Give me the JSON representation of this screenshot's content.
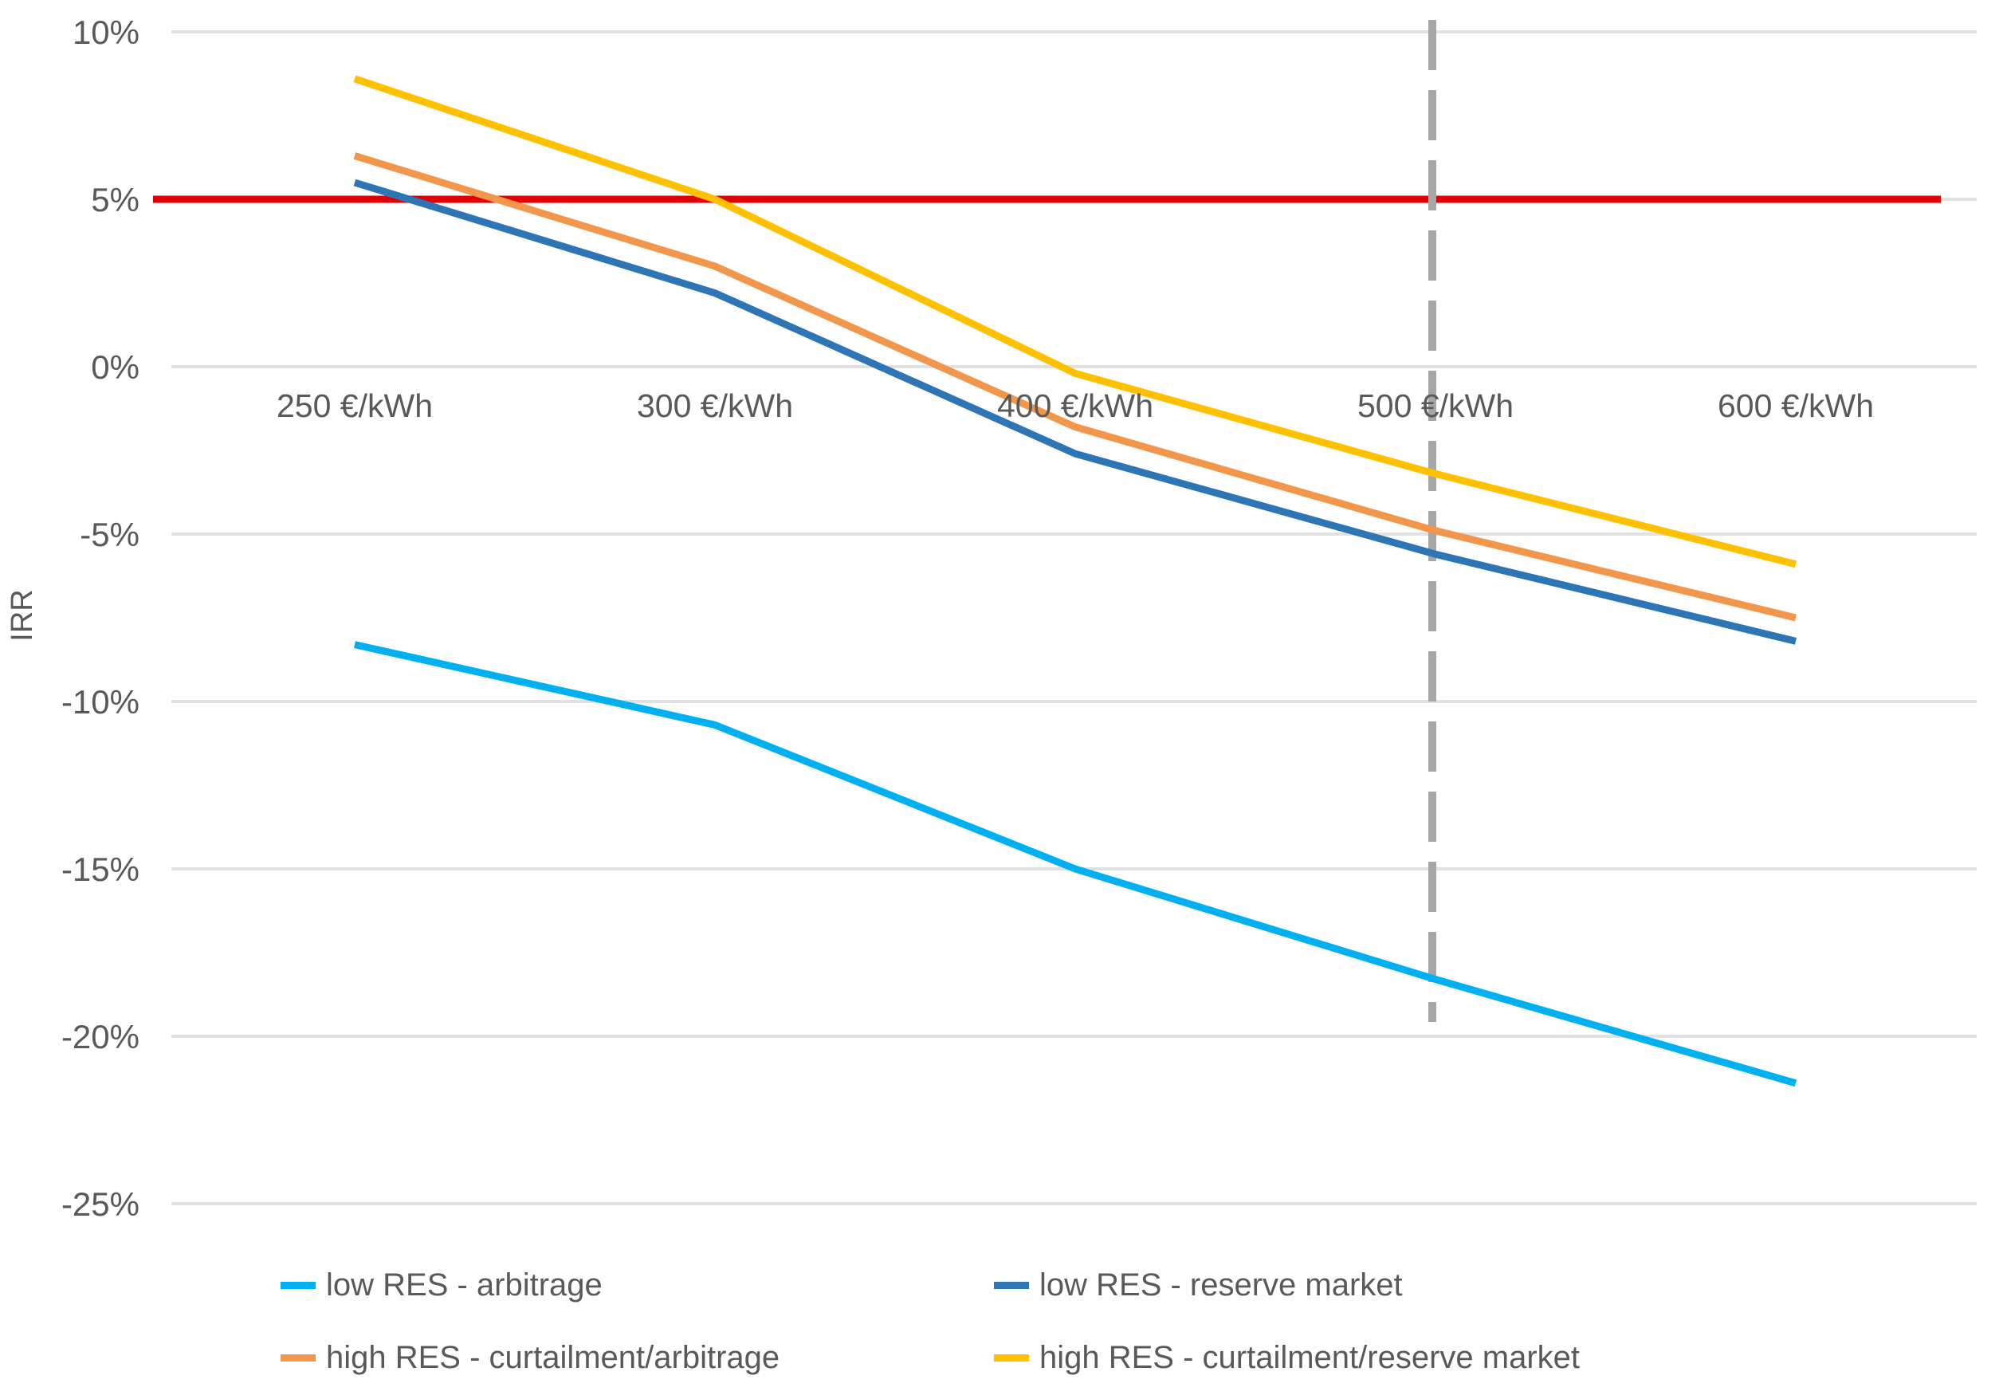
{
  "chart_data": {
    "type": "line",
    "title": "",
    "xlabel": "",
    "ylabel": "IRR",
    "categories": [
      "250 €/kWh",
      "300 €/kWh",
      "400 €/kWh",
      "500 €/kWh",
      "600 €/kWh"
    ],
    "y_ticks": [
      {
        "label": "10%",
        "value": 10
      },
      {
        "label": "5%",
        "value": 5
      },
      {
        "label": "0%",
        "value": 0
      },
      {
        "label": "-5%",
        "value": -5
      },
      {
        "label": "-10%",
        "value": -10
      },
      {
        "label": "-15%",
        "value": -15
      },
      {
        "label": "-20%",
        "value": -20
      },
      {
        "label": "-25%",
        "value": -25
      }
    ],
    "ylim": [
      -25,
      10
    ],
    "grid": "horizontal-only",
    "legend_position": "bottom",
    "series": [
      {
        "name": "low RES - arbitrage",
        "color": "#00b0f0",
        "values": [
          -8.3,
          -10.7,
          -15.0,
          -18.3,
          -21.4
        ]
      },
      {
        "name": "low RES - reserve market",
        "color": "#2e75b6",
        "values": [
          5.5,
          2.2,
          -2.6,
          -5.6,
          -8.2
        ]
      },
      {
        "name": "high RES - curtailment/arbitrage",
        "color": "#f2964b",
        "values": [
          6.3,
          3.0,
          -1.8,
          -4.9,
          -7.5
        ]
      },
      {
        "name": "high RES - curtailment/reserve market",
        "color": "#ffc000",
        "values": [
          8.6,
          5.0,
          -0.2,
          -3.2,
          -5.9
        ]
      }
    ],
    "reference_lines": [
      {
        "orientation": "horizontal",
        "value": 5,
        "color": "#e00000",
        "style": "solid"
      },
      {
        "orientation": "vertical",
        "at_category": "500 €/kWh",
        "color": "#a6a6a6",
        "style": "dashed"
      }
    ],
    "colors": {
      "gridline": "#e1e1e1",
      "tick_text": "#595959",
      "legend_text": "#595959"
    }
  }
}
